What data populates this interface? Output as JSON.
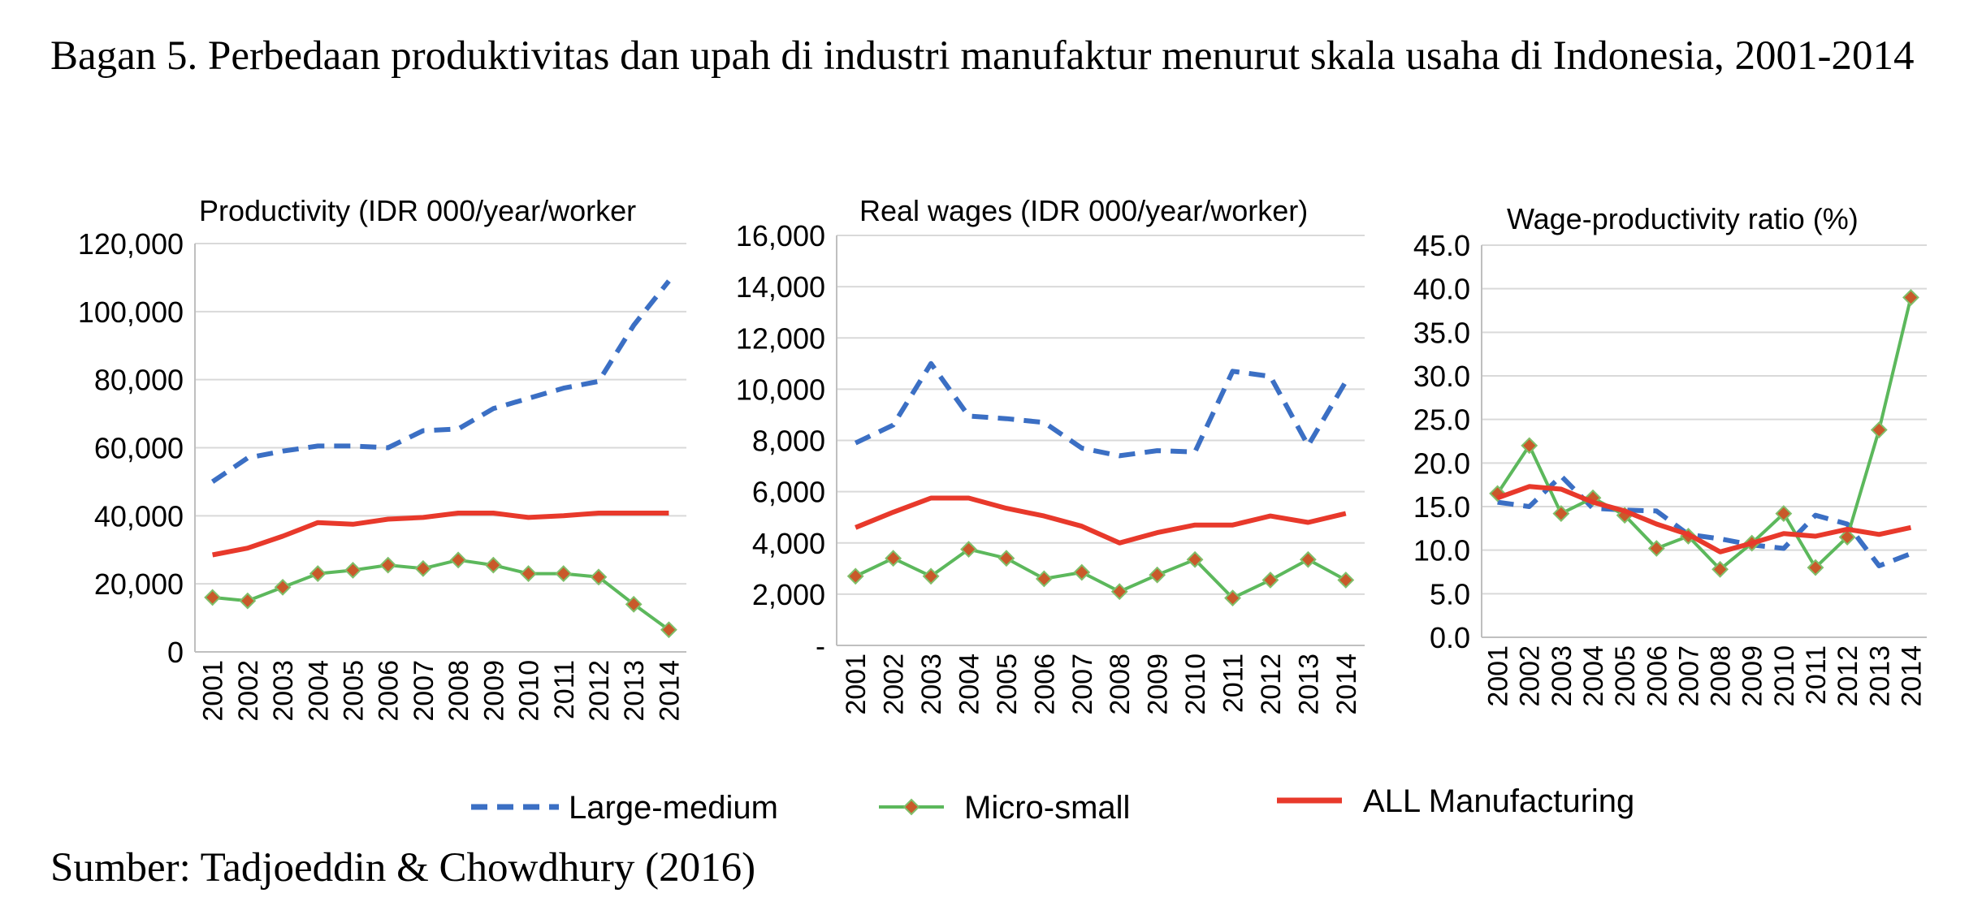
{
  "figure": {
    "title": "Bagan 5. Perbedaan produktivitas dan upah di industri manufaktur menurut skala usaha di Indonesia, 2001-2014",
    "source": "Sumber: Tadjoeddin & Chowdhury (2016)"
  },
  "legend": {
    "items": [
      {
        "label": "Large-medium",
        "color": "#3b6fc4",
        "style": "dashed"
      },
      {
        "label": "Micro-small",
        "color": "#5cb85c",
        "style": "solid-diamond"
      },
      {
        "label": "ALL Manufacturing",
        "color": "#e8392b",
        "style": "solid"
      }
    ]
  },
  "chart_data": [
    {
      "type": "line",
      "title": "Productivity  (IDR 000/year/worker",
      "xlabel": "",
      "ylabel": "",
      "ylim": [
        0,
        120000
      ],
      "yticks": [
        "0",
        "20,000",
        "40,000",
        "60,000",
        "80,000",
        "100,000",
        "120,000"
      ],
      "grid": true,
      "x": [
        "2001",
        "2002",
        "2003",
        "2004",
        "2005",
        "2006",
        "2007",
        "2008",
        "2009",
        "2010",
        "2011",
        "2012",
        "2013",
        "2014"
      ],
      "series": [
        {
          "name": "Large-medium",
          "values": [
            50000,
            57000,
            59000,
            60500,
            60500,
            60000,
            65000,
            65500,
            71500,
            74500,
            77500,
            79500,
            96000,
            109000
          ]
        },
        {
          "name": "Micro-small",
          "values": [
            16000,
            15000,
            19000,
            23000,
            24000,
            25500,
            24500,
            27000,
            25500,
            23000,
            23000,
            22000,
            14000,
            6500
          ]
        },
        {
          "name": "ALL Manufacturing",
          "values": [
            28500,
            30500,
            34000,
            38000,
            37500,
            39000,
            39500,
            40800,
            40800,
            39500,
            40000,
            40800,
            40800,
            40800
          ]
        }
      ]
    },
    {
      "type": "line",
      "title": "Real wages (IDR 000/year/worker)",
      "xlabel": "",
      "ylabel": "",
      "ylim": [
        0,
        16000
      ],
      "yticks": [
        "-",
        "2,000",
        "4,000",
        "6,000",
        "8,000",
        "10,000",
        "12,000",
        "14,000",
        "16,000"
      ],
      "grid": true,
      "x": [
        "2001",
        "2002",
        "2003",
        "2004",
        "2005",
        "2006",
        "2007",
        "2008",
        "2009",
        "2010",
        "2011",
        "2012",
        "2013",
        "2014"
      ],
      "series": [
        {
          "name": "Large-medium",
          "values": [
            7900,
            8600,
            11000,
            8950,
            8850,
            8700,
            7700,
            7400,
            7600,
            7550,
            10700,
            10500,
            7800,
            10300
          ]
        },
        {
          "name": "Micro-small",
          "values": [
            2700,
            3400,
            2700,
            3750,
            3400,
            2600,
            2850,
            2100,
            2750,
            3350,
            1850,
            2550,
            3350,
            2550
          ]
        },
        {
          "name": "ALL Manufacturing",
          "values": [
            4600,
            5200,
            5750,
            5750,
            5350,
            5050,
            4650,
            4000,
            4400,
            4700,
            4700,
            5050,
            4800,
            5150
          ]
        }
      ]
    },
    {
      "type": "line",
      "title": "Wage-productivity ratio (%)",
      "xlabel": "",
      "ylabel": "",
      "ylim": [
        0,
        45
      ],
      "yticks": [
        "0.0",
        "5.0",
        "10.0",
        "15.0",
        "20.0",
        "25.0",
        "30.0",
        "35.0",
        "40.0",
        "45.0"
      ],
      "grid": true,
      "x": [
        "2001",
        "2002",
        "2003",
        "2004",
        "2005",
        "2006",
        "2007",
        "2008",
        "2009",
        "2010",
        "2011",
        "2012",
        "2013",
        "2014"
      ],
      "series": [
        {
          "name": "Large-medium",
          "values": [
            15.5,
            15.0,
            18.5,
            14.8,
            14.6,
            14.5,
            11.8,
            11.3,
            10.6,
            10.2,
            14.0,
            13.0,
            8.2,
            9.6
          ]
        },
        {
          "name": "Micro-small",
          "values": [
            16.5,
            22.0,
            14.2,
            16.0,
            14.0,
            10.2,
            11.6,
            7.8,
            10.8,
            14.2,
            8.0,
            11.5,
            23.8,
            39.0
          ]
        },
        {
          "name": "ALL Manufacturing",
          "values": [
            16.0,
            17.3,
            17.0,
            15.5,
            14.5,
            13.0,
            11.8,
            9.8,
            10.8,
            11.9,
            11.6,
            12.4,
            11.8,
            12.6
          ]
        }
      ]
    }
  ]
}
